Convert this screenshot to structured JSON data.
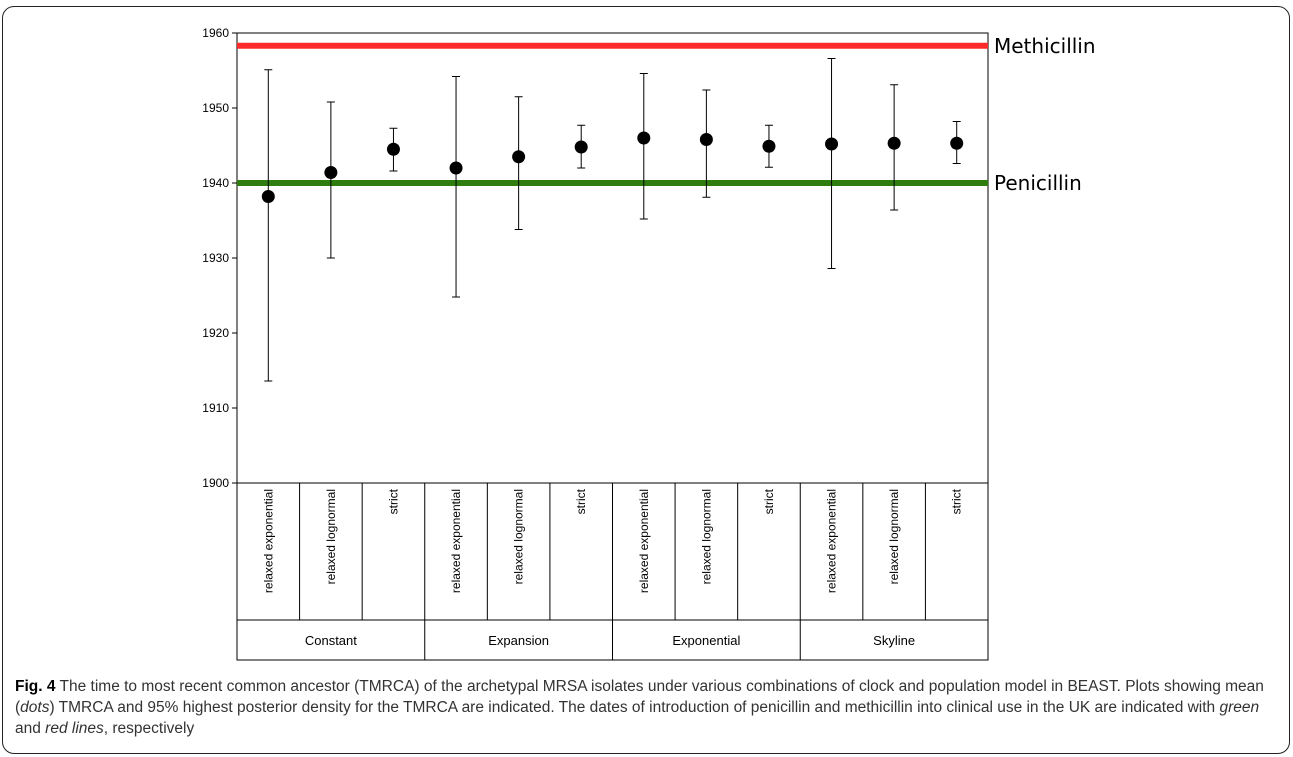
{
  "chart_data": {
    "type": "scatter",
    "subtype": "dot-with-error-bars",
    "ylim": [
      1900,
      1960
    ],
    "yticks": [
      1900,
      1910,
      1920,
      1930,
      1940,
      1950,
      1960
    ],
    "groups": [
      {
        "label": "Constant",
        "categories": [
          "relaxed exponential",
          "relaxed lognormal",
          "strict"
        ]
      },
      {
        "label": "Expansion",
        "categories": [
          "relaxed exponential",
          "relaxed lognormal",
          "strict"
        ]
      },
      {
        "label": "Exponential",
        "categories": [
          "relaxed exponential",
          "relaxed lognormal",
          "strict"
        ]
      },
      {
        "label": "Skyline",
        "categories": [
          "relaxed exponential",
          "relaxed lognormal",
          "strict"
        ]
      }
    ],
    "points": [
      {
        "mean": 1938.2,
        "lower": 1913.6,
        "upper": 1955.1
      },
      {
        "mean": 1941.4,
        "lower": 1930.0,
        "upper": 1950.8
      },
      {
        "mean": 1944.5,
        "lower": 1941.6,
        "upper": 1947.3
      },
      {
        "mean": 1942.0,
        "lower": 1924.8,
        "upper": 1954.2
      },
      {
        "mean": 1943.5,
        "lower": 1933.8,
        "upper": 1951.5
      },
      {
        "mean": 1944.8,
        "lower": 1942.0,
        "upper": 1947.7
      },
      {
        "mean": 1946.0,
        "lower": 1935.2,
        "upper": 1954.6
      },
      {
        "mean": 1945.8,
        "lower": 1938.1,
        "upper": 1952.4
      },
      {
        "mean": 1944.9,
        "lower": 1942.1,
        "upper": 1947.7
      },
      {
        "mean": 1945.2,
        "lower": 1928.6,
        "upper": 1956.6
      },
      {
        "mean": 1945.3,
        "lower": 1936.4,
        "upper": 1953.1
      },
      {
        "mean": 1945.3,
        "lower": 1942.6,
        "upper": 1948.2
      }
    ],
    "reference_lines": [
      {
        "label": "Methicillin",
        "y": 1958.3,
        "color": "#ff2a2a"
      },
      {
        "label": "Penicillin",
        "y": 1940.0,
        "color": "#2e7d0e"
      }
    ],
    "grid": false
  },
  "caption": {
    "fig_label": "Fig. 4",
    "part1": " The time to most recent common ancestor (TMRCA) of the archetypal MRSA isolates under various combinations of clock and population model in BEAST. Plots showing mean (",
    "dots": "dots",
    "part2": ") TMRCA and 95% highest posterior density for the TMRCA are indicated. The dates of introduction of penicillin and methicillin into clinical use in the UK are indicated with ",
    "green_lines": "green",
    "part3": " and ",
    "red_lines": "red lines",
    "part4": ", respectively"
  }
}
